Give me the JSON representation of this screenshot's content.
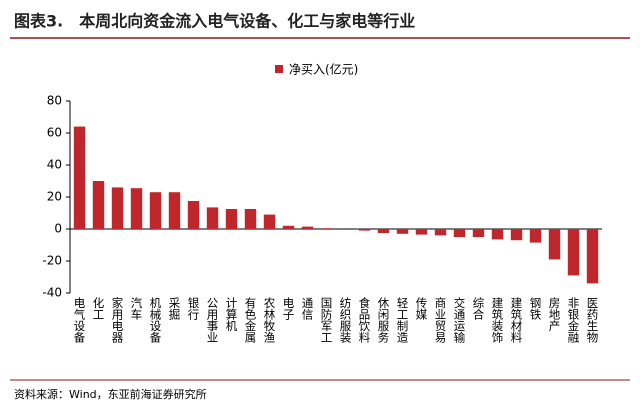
{
  "title": "图表3.　本周北向资金流入电气设备、化工与家电等行业",
  "source": "资料来源：Wind，东亚前海证券研究所",
  "chart_data": {
    "type": "bar",
    "categories": [
      "电气设备",
      "化工",
      "家用电器",
      "汽车",
      "机械设备",
      "采掘",
      "银行",
      "公用事业",
      "计算机",
      "有色金属",
      "农林牧渔",
      "电子",
      "通信",
      "国防军工",
      "纺织服装",
      "食品饮料",
      "休闲服务",
      "轻工制造",
      "传媒",
      "商业贸易",
      "交通运输",
      "综合",
      "建筑装饰",
      "建筑材料",
      "钢铁",
      "房地产",
      "非银金融",
      "医药生物"
    ],
    "series": [
      {
        "name": "净买入(亿元)",
        "color": "#c0272d",
        "values": [
          64,
          30,
          26,
          25.5,
          23,
          23,
          17.5,
          13.5,
          12.5,
          12.5,
          9,
          2,
          1.5,
          0.5,
          -0.5,
          -1,
          -2.5,
          -3,
          -3.5,
          -4,
          -5,
          -5,
          -6.5,
          -7,
          -8.5,
          -19,
          -29,
          -34
        ]
      }
    ],
    "ylim": [
      -40,
      80
    ],
    "yticks": [
      -40,
      -20,
      0,
      20,
      40,
      60,
      80
    ],
    "legend": "top"
  }
}
